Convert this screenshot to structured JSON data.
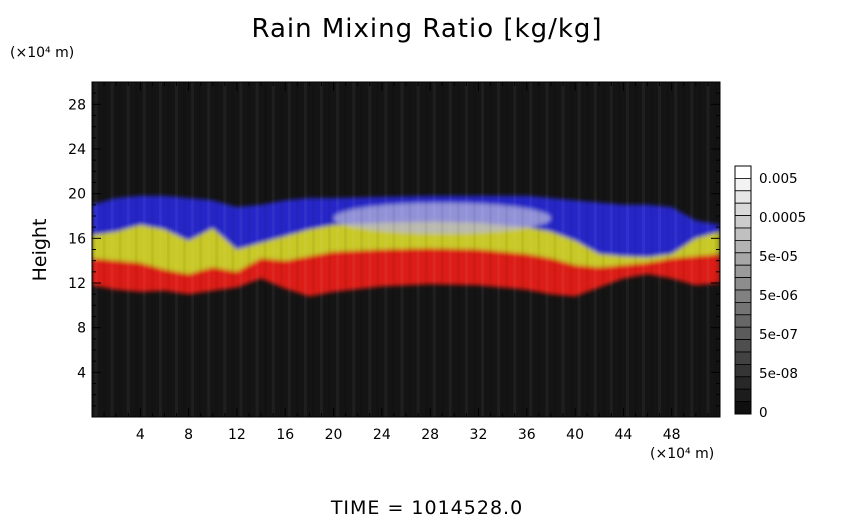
{
  "chart_data": {
    "type": "heatmap",
    "title": "Rain Mixing Ratio [kg/kg]",
    "ylabel": "Height",
    "y_unit": "(×10⁴ m)",
    "x_unit": "(×10⁴ m)",
    "xlim": [
      0,
      52
    ],
    "ylim": [
      0,
      30
    ],
    "x_ticks": [
      4,
      8,
      12,
      16,
      20,
      24,
      28,
      32,
      36,
      40,
      44,
      48
    ],
    "y_ticks": [
      4,
      8,
      12,
      16,
      20,
      24,
      28
    ],
    "x_tick_labels": [
      "4",
      "8",
      "12",
      "16",
      "20",
      "24",
      "28",
      "32",
      "36",
      "40",
      "44",
      "48"
    ],
    "y_tick_labels": [
      "4",
      "8",
      "12",
      "16",
      "20",
      "24",
      "28"
    ],
    "colorbar": {
      "labels": [
        "0.005",
        "0.0005",
        "5e-05",
        "5e-06",
        "5e-07",
        "5e-08",
        "0"
      ],
      "segments": 20
    },
    "colors": {
      "background": "#141414",
      "blue": "#2828c8",
      "pale": "#b4b4dc",
      "yellow": "#c8c828",
      "red": "#dc1e14"
    },
    "rain_bands": {
      "columns": [
        {
          "x": 0.0,
          "red": [
            11.8,
            14.2
          ],
          "yellow": [
            14.2,
            16.3
          ],
          "blue": [
            16.3,
            19.0
          ]
        },
        {
          "x": 2.0,
          "red": [
            11.4,
            14.0
          ],
          "yellow": [
            14.0,
            16.6
          ],
          "blue": [
            16.6,
            19.6
          ]
        },
        {
          "x": 4.0,
          "red": [
            11.2,
            13.8
          ],
          "yellow": [
            13.8,
            17.2
          ],
          "blue": [
            17.2,
            19.8
          ]
        },
        {
          "x": 6.0,
          "red": [
            11.3,
            13.2
          ],
          "yellow": [
            13.2,
            16.8
          ],
          "blue": [
            16.8,
            19.8
          ]
        },
        {
          "x": 8.0,
          "red": [
            11.0,
            12.8
          ],
          "yellow": [
            12.8,
            15.8
          ],
          "blue": [
            15.8,
            19.6
          ]
        },
        {
          "x": 10.0,
          "red": [
            11.3,
            13.4
          ],
          "yellow": [
            13.4,
            16.9
          ],
          "blue": [
            16.9,
            19.4
          ]
        },
        {
          "x": 12.0,
          "red": [
            11.6,
            13.0
          ],
          "yellow": [
            13.0,
            15.0
          ],
          "blue": [
            15.0,
            18.8
          ]
        },
        {
          "x": 14.0,
          "red": [
            12.4,
            14.2
          ],
          "yellow": [
            14.2,
            15.6
          ],
          "blue": [
            15.6,
            19.0
          ]
        },
        {
          "x": 16.0,
          "red": [
            11.5,
            14.0
          ],
          "yellow": [
            14.0,
            16.2
          ],
          "blue": [
            16.2,
            19.4
          ]
        },
        {
          "x": 18.0,
          "red": [
            10.8,
            14.4
          ],
          "yellow": [
            14.4,
            16.8
          ],
          "blue": [
            16.8,
            19.6
          ]
        },
        {
          "x": 20.0,
          "red": [
            11.2,
            14.8
          ],
          "yellow": [
            14.8,
            17.2
          ],
          "blue": [
            17.2,
            19.6
          ]
        },
        {
          "x": 24.0,
          "red": [
            11.7,
            15.0
          ],
          "yellow": [
            15.0,
            17.4
          ],
          "blue": [
            17.4,
            19.7
          ]
        },
        {
          "x": 28.0,
          "red": [
            11.9,
            15.1
          ],
          "yellow": [
            15.1,
            17.5
          ],
          "blue": [
            17.5,
            19.8
          ]
        },
        {
          "x": 32.0,
          "red": [
            11.8,
            15.0
          ],
          "yellow": [
            15.0,
            17.4
          ],
          "blue": [
            17.4,
            19.8
          ]
        },
        {
          "x": 36.0,
          "red": [
            11.4,
            14.6
          ],
          "yellow": [
            14.6,
            17.0
          ],
          "blue": [
            17.0,
            19.8
          ]
        },
        {
          "x": 38.0,
          "red": [
            11.0,
            14.2
          ],
          "yellow": [
            14.2,
            16.6
          ],
          "blue": [
            16.6,
            19.6
          ]
        },
        {
          "x": 40.0,
          "red": [
            10.8,
            13.6
          ],
          "yellow": [
            13.6,
            15.8
          ],
          "blue": [
            15.8,
            19.4
          ]
        },
        {
          "x": 42.0,
          "red": [
            11.6,
            13.4
          ],
          "yellow": [
            13.4,
            14.6
          ],
          "blue": [
            14.6,
            19.2
          ]
        },
        {
          "x": 44.0,
          "red": [
            12.4,
            13.6
          ],
          "yellow": [
            13.6,
            14.4
          ],
          "blue": [
            14.4,
            19.0
          ]
        },
        {
          "x": 46.0,
          "red": [
            12.8,
            13.8
          ],
          "yellow": [
            13.8,
            14.3
          ],
          "blue": [
            14.3,
            19.0
          ]
        },
        {
          "x": 48.0,
          "red": [
            12.4,
            14.2
          ],
          "yellow": [
            14.2,
            14.6
          ],
          "blue": [
            14.6,
            18.8
          ]
        },
        {
          "x": 50.0,
          "red": [
            11.8,
            14.4
          ],
          "yellow": [
            14.4,
            16.0
          ],
          "blue": [
            16.0,
            17.6
          ]
        },
        {
          "x": 52.0,
          "red": [
            12.0,
            14.6
          ],
          "yellow": [
            14.6,
            16.6
          ],
          "blue": [
            16.6,
            17.2
          ]
        }
      ],
      "pale_core": {
        "x_range": [
          20,
          38
        ],
        "y_range": [
          16.4,
          19.2
        ]
      }
    }
  },
  "footer": {
    "time_label": "TIME  =  1014528.0"
  }
}
